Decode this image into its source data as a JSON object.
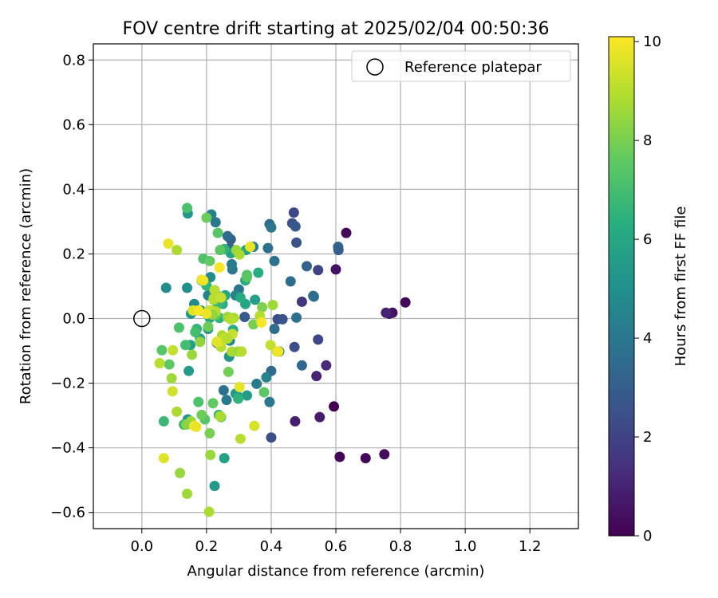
{
  "chart_data": {
    "type": "scatter",
    "title": "FOV centre drift starting at 2025/02/04 00:50:36",
    "xlabel": "Angular distance from reference (arcmin)",
    "ylabel": "Rotation from reference (arcmin)",
    "xlim": [
      -0.15,
      1.35
    ],
    "ylim": [
      -0.65,
      0.85
    ],
    "xticks": [
      0.0,
      0.2,
      0.4,
      0.6,
      0.8,
      1.0,
      1.2
    ],
    "xtick_labels": [
      "0.0",
      "0.2",
      "0.4",
      "0.6",
      "0.8",
      "1.0",
      "1.2"
    ],
    "yticks": [
      -0.6,
      -0.4,
      -0.2,
      0.0,
      0.2,
      0.4,
      0.6,
      0.8
    ],
    "ytick_labels": [
      "−0.6",
      "−0.4",
      "−0.2",
      "0.0",
      "0.2",
      "0.4",
      "0.6",
      "0.8"
    ],
    "grid": true,
    "legend": {
      "placement": "top-right",
      "entries": [
        "Reference platepar"
      ]
    },
    "reference_point": {
      "name": "Reference platepar",
      "x": 0.0,
      "y": 0.0
    },
    "colorbar": {
      "label": "Hours from first FF file",
      "min": 0,
      "max": 10.1,
      "ticks": [
        0,
        2,
        4,
        6,
        8,
        10
      ],
      "tick_labels": [
        "0",
        "2",
        "4",
        "6",
        "8",
        "10"
      ],
      "colormap": "viridis"
    },
    "points": [
      [
        0.815,
        0.05,
        0.2
      ],
      [
        0.775,
        0.018,
        0.4
      ],
      [
        0.765,
        0.015,
        0.6
      ],
      [
        0.755,
        0.018,
        1.0
      ],
      [
        0.75,
        -0.42,
        0.3
      ],
      [
        0.692,
        -0.432,
        0.2
      ],
      [
        0.612,
        -0.428,
        0.1
      ],
      [
        0.632,
        0.265,
        0.2
      ],
      [
        0.6,
        0.152,
        0.5
      ],
      [
        0.594,
        -0.272,
        0.0
      ],
      [
        0.57,
        -0.145,
        1.2
      ],
      [
        0.55,
        -0.305,
        0.8
      ],
      [
        0.54,
        -0.178,
        1.0
      ],
      [
        0.474,
        -0.318,
        0.9
      ],
      [
        0.495,
        0.052,
        1.5
      ],
      [
        0.545,
        0.15,
        2.0
      ],
      [
        0.545,
        -0.065,
        2.2
      ],
      [
        0.47,
        0.328,
        2.2
      ],
      [
        0.465,
        0.295,
        2.5
      ],
      [
        0.475,
        0.285,
        2.8
      ],
      [
        0.478,
        0.235,
        2.6
      ],
      [
        0.472,
        -0.088,
        2.4
      ],
      [
        0.42,
        -0.002,
        2.3
      ],
      [
        0.435,
        -0.002,
        2.6
      ],
      [
        0.4,
        -0.368,
        2.4
      ],
      [
        0.607,
        0.222,
        3.3
      ],
      [
        0.608,
        0.212,
        3.0
      ],
      [
        0.51,
        0.162,
        3.2
      ],
      [
        0.53,
        0.07,
        3.3
      ],
      [
        0.532,
        0.068,
        3.6
      ],
      [
        0.46,
        0.115,
        3.5
      ],
      [
        0.495,
        -0.145,
        3.4
      ],
      [
        0.478,
        0.003,
        3.8
      ],
      [
        0.41,
        -0.032,
        3.6
      ],
      [
        0.4,
        -0.162,
        3.5
      ],
      [
        0.395,
        -0.258,
        4.0
      ],
      [
        0.41,
        0.178,
        3.8
      ],
      [
        0.395,
        0.292,
        3.5
      ],
      [
        0.4,
        0.282,
        4.0
      ],
      [
        0.39,
        0.218,
        3.7
      ],
      [
        0.425,
        -0.102,
        4.5
      ],
      [
        0.385,
        -0.182,
        4.5
      ],
      [
        0.355,
        -0.202,
        4.2
      ],
      [
        0.345,
        0.222,
        4.3
      ],
      [
        0.318,
        0.005,
        2.8
      ],
      [
        0.3,
        0.09,
        3.9
      ],
      [
        0.29,
        0.072,
        4.5
      ],
      [
        0.275,
        0.245,
        3.0
      ],
      [
        0.272,
        0.218,
        3.2
      ],
      [
        0.265,
        0.255,
        3.5
      ],
      [
        0.28,
        0.152,
        4.0
      ],
      [
        0.278,
        0.168,
        4.2
      ],
      [
        0.272,
        -0.068,
        4.6
      ],
      [
        0.253,
        -0.222,
        3.8
      ],
      [
        0.262,
        -0.252,
        4.1
      ],
      [
        0.215,
        0.322,
        4.4
      ],
      [
        0.228,
        0.298,
        4.0
      ],
      [
        0.212,
        0.128,
        4.8
      ],
      [
        0.232,
        -0.075,
        2.8
      ],
      [
        0.205,
        0.072,
        4.5
      ],
      [
        0.162,
        0.045,
        4.8
      ],
      [
        0.075,
        0.095,
        4.9
      ],
      [
        0.142,
        0.325,
        5.3
      ],
      [
        0.14,
        0.095,
        5.0
      ],
      [
        0.152,
        0.015,
        5.3
      ],
      [
        0.145,
        -0.162,
        5.5
      ],
      [
        0.15,
        -0.082,
        5.6
      ],
      [
        0.142,
        -0.312,
        5.4
      ],
      [
        0.182,
        0.025,
        5.0
      ],
      [
        0.205,
        -0.032,
        5.2
      ],
      [
        0.18,
        -0.062,
        5.8
      ],
      [
        0.21,
        0.002,
        6.0
      ],
      [
        0.225,
        -0.518,
        5.4
      ],
      [
        0.255,
        -0.432,
        5.8
      ],
      [
        0.27,
        -0.118,
        5.2
      ],
      [
        0.29,
        -0.232,
        5.4
      ],
      [
        0.298,
        -0.242,
        5.7
      ],
      [
        0.325,
        -0.238,
        5.5
      ],
      [
        0.35,
        0.058,
        5.6
      ],
      [
        0.36,
        0.142,
        6.2
      ],
      [
        0.32,
        0.045,
        5.9
      ],
      [
        0.32,
        0.118,
        6.2
      ],
      [
        0.305,
        0.065,
        6.1
      ],
      [
        0.275,
        0.202,
        5.8
      ],
      [
        0.295,
        0.208,
        5.5
      ],
      [
        0.322,
        0.212,
        6.0
      ],
      [
        0.258,
        0.072,
        6.0
      ],
      [
        0.25,
        0.045,
        6.3
      ],
      [
        0.24,
        0.052,
        6.5
      ],
      [
        0.232,
        0.072,
        6.8
      ],
      [
        0.235,
        0.045,
        6.8
      ],
      [
        0.24,
        0.002,
        6.5
      ],
      [
        0.255,
        0.215,
        6.5
      ],
      [
        0.282,
        -0.035,
        6.3
      ],
      [
        0.298,
        -0.248,
        6.5
      ],
      [
        0.238,
        -0.298,
        6.4
      ],
      [
        0.185,
        0.118,
        6.2
      ],
      [
        0.2,
        0.102,
        6.5
      ],
      [
        0.17,
        -0.032,
        6.6
      ],
      [
        0.165,
        -0.042,
        7.0
      ],
      [
        0.135,
        -0.082,
        7.0
      ],
      [
        0.13,
        -0.328,
        6.8
      ],
      [
        0.068,
        -0.318,
        6.8
      ],
      [
        0.14,
        0.342,
        7.1
      ],
      [
        0.115,
        -0.028,
        7.2
      ],
      [
        0.062,
        -0.098,
        7.4
      ],
      [
        0.085,
        -0.142,
        7.5
      ],
      [
        0.19,
        0.185,
        7.2
      ],
      [
        0.21,
        0.178,
        7.6
      ],
      [
        0.235,
        0.265,
        7.4
      ],
      [
        0.2,
        0.312,
        7.8
      ],
      [
        0.242,
        0.212,
        7.5
      ],
      [
        0.23,
        0.012,
        7.6
      ],
      [
        0.205,
        -0.025,
        7.8
      ],
      [
        0.175,
        -0.258,
        7.2
      ],
      [
        0.195,
        -0.312,
        7.4
      ],
      [
        0.185,
        -0.298,
        7.8
      ],
      [
        0.21,
        -0.355,
        8.0
      ],
      [
        0.22,
        -0.262,
        7.6
      ],
      [
        0.245,
        -0.305,
        7.8
      ],
      [
        0.268,
        -0.165,
        7.9
      ],
      [
        0.325,
        0.135,
        7.3
      ],
      [
        0.325,
        0.128,
        7.5
      ],
      [
        0.345,
        -0.018,
        8.0
      ],
      [
        0.372,
        0.035,
        8.1
      ],
      [
        0.378,
        -0.228,
        7.5
      ],
      [
        0.308,
        -0.102,
        8.2
      ],
      [
        0.18,
        -0.072,
        8.4
      ],
      [
        0.155,
        -0.112,
        8.5
      ],
      [
        0.152,
        -0.318,
        8.6
      ],
      [
        0.138,
        -0.328,
        8.3
      ],
      [
        0.118,
        -0.478,
        8.5
      ],
      [
        0.14,
        -0.542,
        8.6
      ],
      [
        0.212,
        -0.422,
        8.5
      ],
      [
        0.208,
        -0.598,
        8.8
      ],
      [
        0.092,
        -0.185,
        8.6
      ],
      [
        0.108,
        -0.288,
        8.8
      ],
      [
        0.222,
        0.058,
        8.6
      ],
      [
        0.215,
        0.025,
        8.8
      ],
      [
        0.228,
        0.022,
        9.0
      ],
      [
        0.208,
        0.025,
        9.2
      ],
      [
        0.218,
        0.012,
        8.4
      ],
      [
        0.222,
        0.062,
        9.0
      ],
      [
        0.225,
        0.088,
        9.0
      ],
      [
        0.245,
        0.065,
        9.2
      ],
      [
        0.248,
        -0.052,
        8.8
      ],
      [
        0.265,
        0.005,
        8.5
      ],
      [
        0.285,
        0.002,
        9.1
      ],
      [
        0.28,
        0.002,
        8.7
      ],
      [
        0.275,
        -0.002,
        9.0
      ],
      [
        0.28,
        -0.048,
        9.3
      ],
      [
        0.292,
        0.212,
        8.5
      ],
      [
        0.302,
        0.198,
        8.8
      ],
      [
        0.242,
        -0.302,
        8.8
      ],
      [
        0.245,
        -0.088,
        9.0
      ],
      [
        0.24,
        -0.072,
        9.5
      ],
      [
        0.255,
        -0.062,
        9.2
      ],
      [
        0.265,
        -0.062,
        9.0
      ],
      [
        0.278,
        -0.102,
        8.8
      ],
      [
        0.298,
        -0.102,
        8.5
      ],
      [
        0.308,
        -0.102,
        9.0
      ],
      [
        0.305,
        -0.372,
        9.0
      ],
      [
        0.348,
        -0.332,
        9.5
      ],
      [
        0.365,
        0.008,
        9.0
      ],
      [
        0.405,
        0.042,
        8.6
      ],
      [
        0.398,
        -0.082,
        9.2
      ],
      [
        0.418,
        -0.102,
        9.4
      ],
      [
        0.108,
        0.212,
        8.8
      ],
      [
        0.096,
        -0.098,
        9.2
      ],
      [
        0.095,
        -0.225,
        9.4
      ],
      [
        0.055,
        -0.138,
        9.0
      ],
      [
        0.068,
        -0.432,
        9.6
      ],
      [
        0.082,
        0.232,
        9.8
      ],
      [
        0.158,
        0.025,
        9.6
      ],
      [
        0.162,
        -0.332,
        9.9
      ],
      [
        0.168,
        -0.335,
        9.8
      ],
      [
        0.185,
        0.12,
        9.7
      ],
      [
        0.19,
        0.118,
        9.9
      ],
      [
        0.2,
        0.015,
        9.8
      ],
      [
        0.175,
        0.025,
        10.0
      ],
      [
        0.24,
        0.158,
        10.0
      ],
      [
        0.232,
        -0.072,
        9.6
      ],
      [
        0.302,
        -0.212,
        9.7
      ],
      [
        0.335,
        0.222,
        9.8
      ],
      [
        0.37,
        -0.012,
        10.0
      ],
      [
        0.422,
        -0.102,
        9.9
      ]
    ]
  }
}
